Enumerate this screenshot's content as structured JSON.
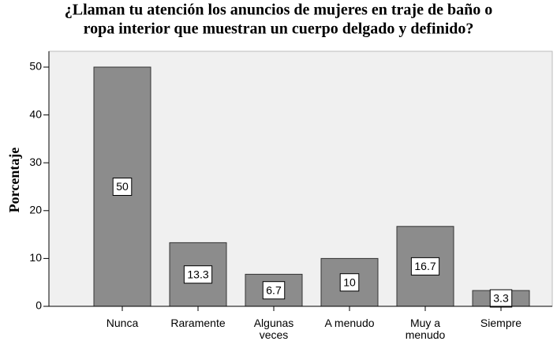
{
  "chart_data": {
    "type": "bar",
    "title": [
      "¿Llaman tu atención los anuncios de mujeres en traje de baño o",
      "ropa interior que muestran un cuerpo delgado y definido?"
    ],
    "ylabel": "Porcentaje",
    "categories": [
      "Nunca",
      "Raramente",
      "Algunas veces",
      "A menudo",
      "Muy a menudo",
      "Siempre"
    ],
    "values": [
      50,
      13.3,
      6.7,
      10,
      16.7,
      3.3
    ],
    "color": "#8c8c8c",
    "ylim": [
      0,
      53.3
    ],
    "yticks": [
      0,
      10,
      20,
      30,
      40,
      50
    ]
  }
}
